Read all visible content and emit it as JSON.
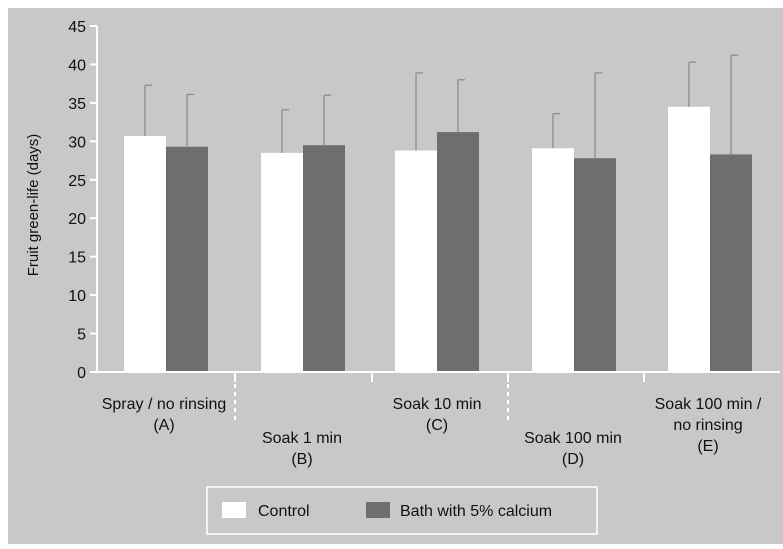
{
  "chart_data": {
    "type": "bar",
    "ylabel": "Fruit green-life (days)",
    "ylim": [
      0,
      45
    ],
    "yticks": [
      0,
      5,
      10,
      15,
      20,
      25,
      30,
      35,
      40,
      45
    ],
    "grid": false,
    "legend_position": "bottom",
    "categories": [
      [
        "Spray / no rinsing",
        "(A)"
      ],
      [
        "Soak 1 min",
        "(B)"
      ],
      [
        "Soak 10 min",
        "(C)"
      ],
      [
        "Soak 100 min",
        "(D)"
      ],
      [
        "Soak 100 min /",
        "no rinsing",
        "(E)"
      ]
    ],
    "series": [
      {
        "name": "Control",
        "color": "#ffffff",
        "values": [
          30.7,
          28.5,
          28.8,
          29.1,
          34.5
        ],
        "error_upper": [
          37.3,
          34.1,
          38.9,
          33.6,
          40.3
        ]
      },
      {
        "name": "Bath with 5% calcium",
        "color": "#6e6e6e",
        "values": [
          29.3,
          29.5,
          31.2,
          27.8,
          28.3
        ],
        "error_upper": [
          36.1,
          36.0,
          38.0,
          38.9,
          41.2
        ]
      }
    ],
    "colors": {
      "background": "#c8c8c8",
      "axis": "#ffffff",
      "text": "#111111",
      "error_bar": "#8c8c8c"
    }
  }
}
